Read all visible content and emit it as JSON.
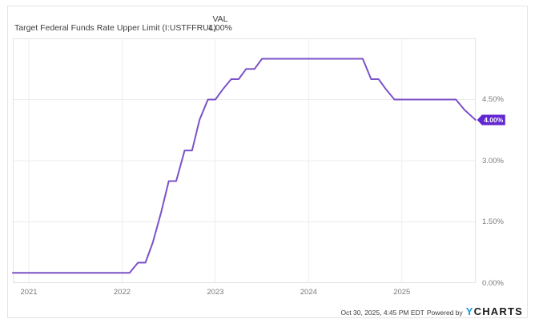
{
  "header": {
    "title": "Target Federal Funds Rate Upper Limit (I:USTFFRUL)",
    "val_label": "VAL",
    "val_value": "4.00%"
  },
  "badge": {
    "text": "4.00%",
    "color": "#6227d0",
    "text_color": "#ffffff"
  },
  "footer": {
    "timestamp": "Oct 30, 2025, 4:45 PM EDT",
    "powered_by": "Powered by",
    "logo_y": "Y",
    "logo_charts": "CHARTS"
  },
  "chart_data": {
    "type": "line",
    "title": "Target Federal Funds Rate Upper Limit (I:USTFFRUL)",
    "series_name": "Target Federal Funds Rate Upper Limit",
    "unit": "percent",
    "last_value": 4.0,
    "last_value_label": "4.00%",
    "line_color": "#7b52c8",
    "grid_color": "#ededed",
    "frame_color": "#e3e3e3",
    "grid": true,
    "legend": "none",
    "xlim": [
      2020.828,
      2025.792
    ],
    "ylim": [
      0,
      6
    ],
    "x_ticks": [
      2021,
      2022,
      2023,
      2024,
      2025
    ],
    "x_tick_labels": [
      "2021",
      "2022",
      "2023",
      "2024",
      "2025"
    ],
    "y_ticks": [
      0,
      1.5,
      3,
      4.5
    ],
    "y_tick_labels": [
      "0.00%",
      "1.50%",
      "3.00%",
      "4.50%"
    ],
    "y_axis_side": "right",
    "points": [
      [
        2020.828,
        0.25
      ],
      [
        2022.08,
        0.25
      ],
      [
        2022.17,
        0.5
      ],
      [
        2022.25,
        0.5
      ],
      [
        2022.33,
        1.0
      ],
      [
        2022.42,
        1.75
      ],
      [
        2022.5,
        2.5
      ],
      [
        2022.58,
        2.5
      ],
      [
        2022.67,
        3.25
      ],
      [
        2022.75,
        3.25
      ],
      [
        2022.83,
        4.0
      ],
      [
        2022.92,
        4.5
      ],
      [
        2023.0,
        4.5
      ],
      [
        2023.08,
        4.75
      ],
      [
        2023.17,
        5.0
      ],
      [
        2023.25,
        5.0
      ],
      [
        2023.33,
        5.25
      ],
      [
        2023.42,
        5.25
      ],
      [
        2023.5,
        5.5
      ],
      [
        2024.58,
        5.5
      ],
      [
        2024.67,
        5.0
      ],
      [
        2024.75,
        5.0
      ],
      [
        2024.83,
        4.75
      ],
      [
        2024.92,
        4.5
      ],
      [
        2025.58,
        4.5
      ],
      [
        2025.67,
        4.25
      ],
      [
        2025.79,
        4.0
      ]
    ]
  }
}
